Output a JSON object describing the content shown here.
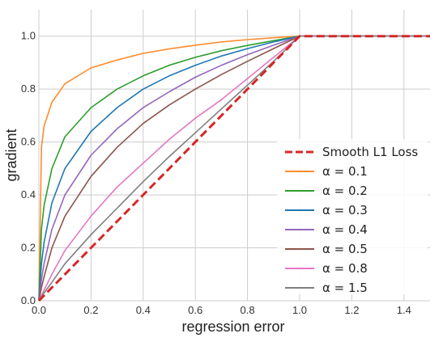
{
  "chart_data": {
    "type": "line",
    "xlabel": "regression error",
    "ylabel": "gradient",
    "xlim": [
      0,
      1.5
    ],
    "ylim": [
      0,
      1.1
    ],
    "x_ticks": [
      0.0,
      0.2,
      0.4,
      0.6,
      0.8,
      1.0,
      1.2,
      1.4
    ],
    "x_tick_labels": [
      "0.0",
      "0.2",
      "0.4",
      "0.6",
      "0.8",
      "1.0",
      "1.2",
      "1.4"
    ],
    "y_ticks": [
      0.0,
      0.2,
      0.4,
      0.6,
      0.8,
      1.0
    ],
    "y_tick_labels": [
      "0.0",
      "0.2",
      "0.4",
      "0.6",
      "0.8",
      "1.0"
    ],
    "grid": true,
    "legend_position": "center-right",
    "x": [
      0,
      0.01,
      0.02,
      0.05,
      0.1,
      0.2,
      0.3,
      0.4,
      0.5,
      0.6,
      0.7,
      0.8,
      0.9,
      1.0,
      1.1,
      1.2,
      1.3,
      1.4,
      1.5
    ],
    "series": [
      {
        "name": "Smooth L1 Loss",
        "color": "#d62728",
        "dash": true,
        "values": [
          0,
          0.01,
          0.02,
          0.05,
          0.1,
          0.2,
          0.3,
          0.4,
          0.5,
          0.6,
          0.7,
          0.8,
          0.9,
          1.0,
          1.0,
          1.0,
          1.0,
          1.0,
          1.0
        ]
      },
      {
        "name": "α = 0.1",
        "color": "#ff8c2e",
        "values": [
          0,
          0.58,
          0.66,
          0.75,
          0.82,
          0.88,
          0.91,
          0.935,
          0.952,
          0.966,
          0.978,
          0.987,
          0.994,
          1.0,
          1.0,
          1.0,
          1.0,
          1.0,
          1.0
        ]
      },
      {
        "name": "α = 0.2",
        "color": "#2ca02c",
        "values": [
          0,
          0.27,
          0.36,
          0.5,
          0.62,
          0.73,
          0.8,
          0.85,
          0.89,
          0.92,
          0.945,
          0.965,
          0.983,
          1.0,
          1.0,
          1.0,
          1.0,
          1.0,
          1.0
        ]
      },
      {
        "name": "α = 0.3",
        "color": "#1f77b4",
        "values": [
          0,
          0.14,
          0.22,
          0.37,
          0.5,
          0.64,
          0.73,
          0.8,
          0.85,
          0.89,
          0.925,
          0.953,
          0.978,
          1.0,
          1.0,
          1.0,
          1.0,
          1.0,
          1.0
        ]
      },
      {
        "name": "α = 0.4",
        "color": "#9467bd",
        "values": [
          0,
          0.08,
          0.14,
          0.27,
          0.4,
          0.55,
          0.65,
          0.73,
          0.79,
          0.845,
          0.89,
          0.93,
          0.966,
          1.0,
          1.0,
          1.0,
          1.0,
          1.0,
          1.0
        ]
      },
      {
        "name": "α = 0.5",
        "color": "#8c564b",
        "values": [
          0,
          0.05,
          0.09,
          0.2,
          0.32,
          0.47,
          0.58,
          0.67,
          0.74,
          0.8,
          0.855,
          0.905,
          0.953,
          1.0,
          1.0,
          1.0,
          1.0,
          1.0,
          1.0
        ]
      },
      {
        "name": "α = 0.8",
        "color": "#e377c2",
        "values": [
          0,
          0.02,
          0.04,
          0.1,
          0.19,
          0.32,
          0.43,
          0.52,
          0.61,
          0.69,
          0.76,
          0.84,
          0.92,
          1.0,
          1.0,
          1.0,
          1.0,
          1.0,
          1.0
        ]
      },
      {
        "name": "α = 1.5",
        "color": "#7f7f7f",
        "values": [
          0,
          0.015,
          0.03,
          0.07,
          0.14,
          0.25,
          0.35,
          0.45,
          0.545,
          0.635,
          0.725,
          0.815,
          0.905,
          1.0,
          1.0,
          1.0,
          1.0,
          1.0,
          1.0
        ]
      }
    ]
  }
}
